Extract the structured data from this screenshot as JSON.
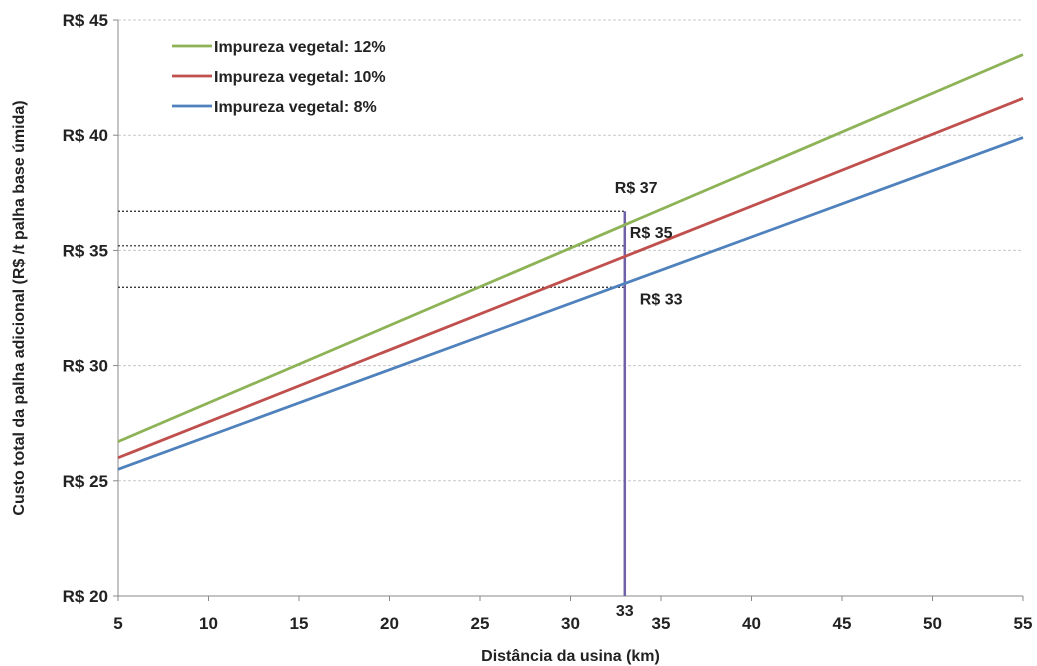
{
  "chart_data": {
    "type": "line",
    "xlabel": "Distância da usina (km)",
    "ylabel": "Custo total da palha adicional (R$ /t palha base úmida)",
    "xlim": [
      5,
      55
    ],
    "ylim": [
      20,
      45
    ],
    "x_ticks": [
      "5",
      "10",
      "15",
      "20",
      "25",
      "30",
      "35",
      "40",
      "45",
      "50",
      "55"
    ],
    "y_ticks": [
      "R$ 20",
      "R$ 25",
      "R$ 30",
      "R$ 35",
      "R$ 40",
      "R$ 45"
    ],
    "grid": "horizontal dashed",
    "legend_position": "top-left",
    "series": [
      {
        "name": "Impureza vegetal: 12%",
        "color": "#8db356",
        "x": [
          5,
          55
        ],
        "y": [
          26.7,
          43.5
        ]
      },
      {
        "name": "Impureza vegetal: 10%",
        "color": "#c0504d",
        "x": [
          5,
          55
        ],
        "y": [
          26.0,
          41.6
        ]
      },
      {
        "name": "Impureza vegetal: 8%",
        "color": "#4f81bd",
        "x": [
          5,
          55
        ],
        "y": [
          25.5,
          39.9
        ]
      }
    ],
    "reference": {
      "x": 33,
      "x_label": "33",
      "color": "#7060a8",
      "levels": [
        {
          "y": 36.7,
          "label": "R$ 37"
        },
        {
          "y": 35.2,
          "label": "R$ 35"
        },
        {
          "y": 33.4,
          "label": "R$ 33"
        }
      ]
    }
  }
}
